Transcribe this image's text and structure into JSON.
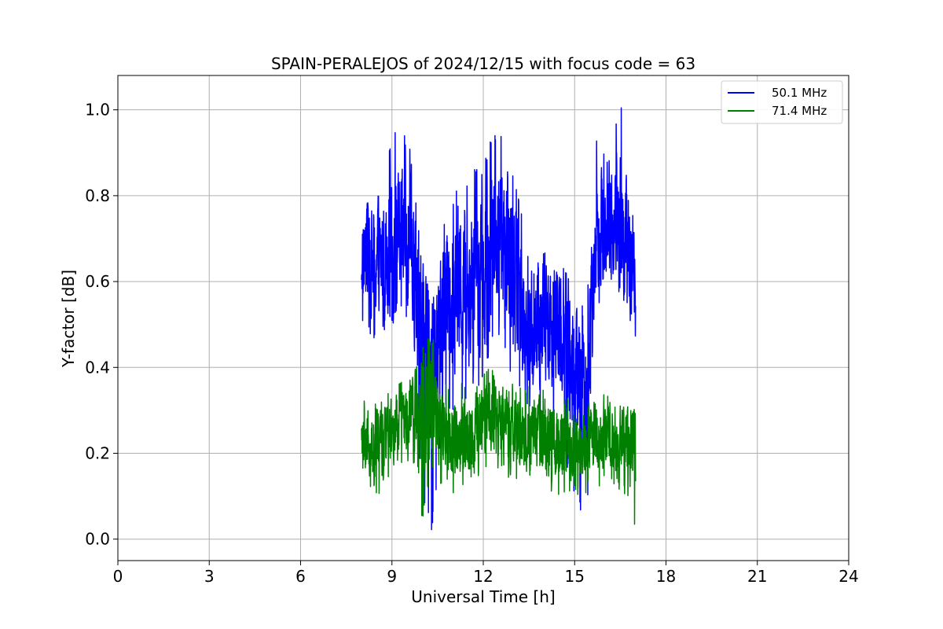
{
  "chart_data": {
    "type": "line",
    "title": "SPAIN-PERALEJOS of 2024/12/15 with focus code = 63",
    "xlabel": "Universal Time [h]",
    "ylabel": "Y-factor [dB]",
    "xlim": [
      0,
      24
    ],
    "ylim": [
      -0.05,
      1.08
    ],
    "xticks": [
      0,
      3,
      6,
      9,
      12,
      15,
      18,
      21,
      24
    ],
    "xtick_labels": [
      "0",
      "3",
      "6",
      "9",
      "12",
      "15",
      "18",
      "21",
      "24"
    ],
    "yticks": [
      0.0,
      0.2,
      0.4,
      0.6,
      0.8,
      1.0
    ],
    "ytick_labels": [
      "0.0",
      "0.2",
      "0.4",
      "0.6",
      "0.8",
      "1.0"
    ],
    "grid": true,
    "legend_position": "top-right",
    "x_range_of_data": [
      8.0,
      17.0
    ],
    "series": [
      {
        "name": "50.1 MHz",
        "color": "#0000ff",
        "envelope": [
          {
            "x": 8.0,
            "mean": 0.66,
            "min": 0.5,
            "max": 0.8
          },
          {
            "x": 8.5,
            "mean": 0.64,
            "min": 0.45,
            "max": 0.8
          },
          {
            "x": 9.0,
            "mean": 0.68,
            "min": 0.5,
            "max": 0.94
          },
          {
            "x": 9.3,
            "mean": 0.7,
            "min": 0.52,
            "max": 0.96
          },
          {
            "x": 9.6,
            "mean": 0.66,
            "min": 0.48,
            "max": 0.92
          },
          {
            "x": 10.0,
            "mean": 0.48,
            "min": 0.1,
            "max": 0.65
          },
          {
            "x": 10.3,
            "mean": 0.4,
            "min": 0.0,
            "max": 0.55
          },
          {
            "x": 10.7,
            "mean": 0.55,
            "min": 0.3,
            "max": 0.75
          },
          {
            "x": 11.0,
            "mean": 0.58,
            "min": 0.3,
            "max": 0.8
          },
          {
            "x": 11.5,
            "mean": 0.6,
            "min": 0.33,
            "max": 0.85
          },
          {
            "x": 12.0,
            "mean": 0.62,
            "min": 0.36,
            "max": 0.88
          },
          {
            "x": 12.4,
            "mean": 0.7,
            "min": 0.5,
            "max": 0.96
          },
          {
            "x": 12.8,
            "mean": 0.66,
            "min": 0.4,
            "max": 0.93
          },
          {
            "x": 13.2,
            "mean": 0.56,
            "min": 0.35,
            "max": 0.8
          },
          {
            "x": 13.6,
            "mean": 0.45,
            "min": 0.28,
            "max": 0.62
          },
          {
            "x": 14.0,
            "mean": 0.5,
            "min": 0.25,
            "max": 0.67
          },
          {
            "x": 14.5,
            "mean": 0.52,
            "min": 0.25,
            "max": 0.7
          },
          {
            "x": 15.0,
            "mean": 0.38,
            "min": 0.08,
            "max": 0.55
          },
          {
            "x": 15.4,
            "mean": 0.32,
            "min": 0.03,
            "max": 0.55
          },
          {
            "x": 15.7,
            "mean": 0.72,
            "min": 0.55,
            "max": 0.93
          },
          {
            "x": 16.1,
            "mean": 0.72,
            "min": 0.52,
            "max": 0.88
          },
          {
            "x": 16.5,
            "mean": 0.74,
            "min": 0.56,
            "max": 1.03
          },
          {
            "x": 16.8,
            "mean": 0.66,
            "min": 0.45,
            "max": 0.85
          },
          {
            "x": 17.0,
            "mean": 0.58,
            "min": 0.4,
            "max": 0.8
          }
        ]
      },
      {
        "name": "71.4 MHz",
        "color": "#008000",
        "envelope": [
          {
            "x": 8.0,
            "mean": 0.22,
            "min": 0.14,
            "max": 0.32
          },
          {
            "x": 8.5,
            "mean": 0.22,
            "min": 0.09,
            "max": 0.33
          },
          {
            "x": 9.0,
            "mean": 0.25,
            "min": 0.15,
            "max": 0.35
          },
          {
            "x": 9.5,
            "mean": 0.28,
            "min": 0.17,
            "max": 0.4
          },
          {
            "x": 10.0,
            "mean": 0.28,
            "min": 0.03,
            "max": 0.45
          },
          {
            "x": 10.3,
            "mean": 0.3,
            "min": 0.15,
            "max": 0.48
          },
          {
            "x": 10.7,
            "mean": 0.24,
            "min": 0.12,
            "max": 0.38
          },
          {
            "x": 11.0,
            "mean": 0.23,
            "min": 0.1,
            "max": 0.37
          },
          {
            "x": 11.5,
            "mean": 0.24,
            "min": 0.12,
            "max": 0.36
          },
          {
            "x": 12.0,
            "mean": 0.27,
            "min": 0.15,
            "max": 0.4
          },
          {
            "x": 12.3,
            "mean": 0.29,
            "min": 0.17,
            "max": 0.42
          },
          {
            "x": 12.8,
            "mean": 0.25,
            "min": 0.13,
            "max": 0.37
          },
          {
            "x": 13.3,
            "mean": 0.24,
            "min": 0.14,
            "max": 0.35
          },
          {
            "x": 13.8,
            "mean": 0.25,
            "min": 0.12,
            "max": 0.37
          },
          {
            "x": 14.3,
            "mean": 0.22,
            "min": 0.1,
            "max": 0.32
          },
          {
            "x": 14.8,
            "mean": 0.22,
            "min": 0.1,
            "max": 0.33
          },
          {
            "x": 15.2,
            "mean": 0.21,
            "min": 0.1,
            "max": 0.3
          },
          {
            "x": 15.7,
            "mean": 0.24,
            "min": 0.12,
            "max": 0.35
          },
          {
            "x": 16.2,
            "mean": 0.23,
            "min": 0.12,
            "max": 0.33
          },
          {
            "x": 16.7,
            "mean": 0.22,
            "min": 0.1,
            "max": 0.33
          },
          {
            "x": 17.0,
            "mean": 0.2,
            "min": 0.0,
            "max": 0.3
          }
        ]
      }
    ]
  }
}
